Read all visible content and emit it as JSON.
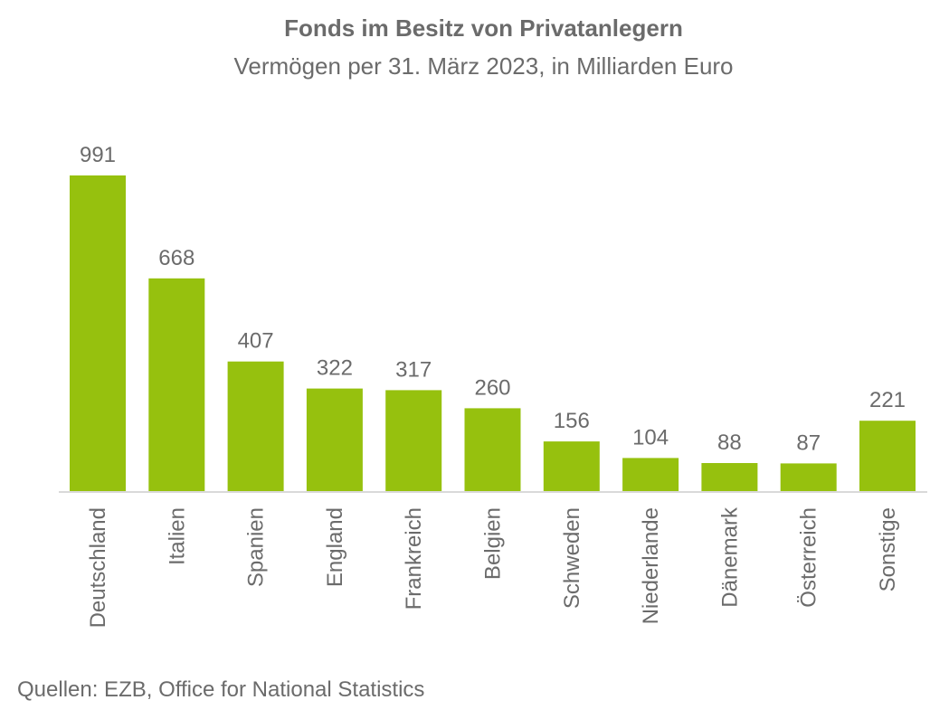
{
  "chart_data": {
    "type": "bar",
    "title": "Fonds im Besitz von Privatanlegern",
    "subtitle": "Vermögen per 31. März 2023, in Milliarden Euro",
    "categories": [
      "Deutschland",
      "Italien",
      "Spanien",
      "England",
      "Frankreich",
      "Belgien",
      "Schweden",
      "Niederlande",
      "Dänemark",
      "Österreich",
      "Sonstige"
    ],
    "values": [
      991,
      668,
      407,
      322,
      317,
      260,
      156,
      104,
      88,
      87,
      221
    ],
    "xlabel": "",
    "ylabel": "",
    "ylim": [
      0,
      1000
    ],
    "grid": false,
    "legend": "none",
    "data_labels": true,
    "bar_color": "#96c10e",
    "source": "Quellen: EZB, Office for National Statistics"
  }
}
